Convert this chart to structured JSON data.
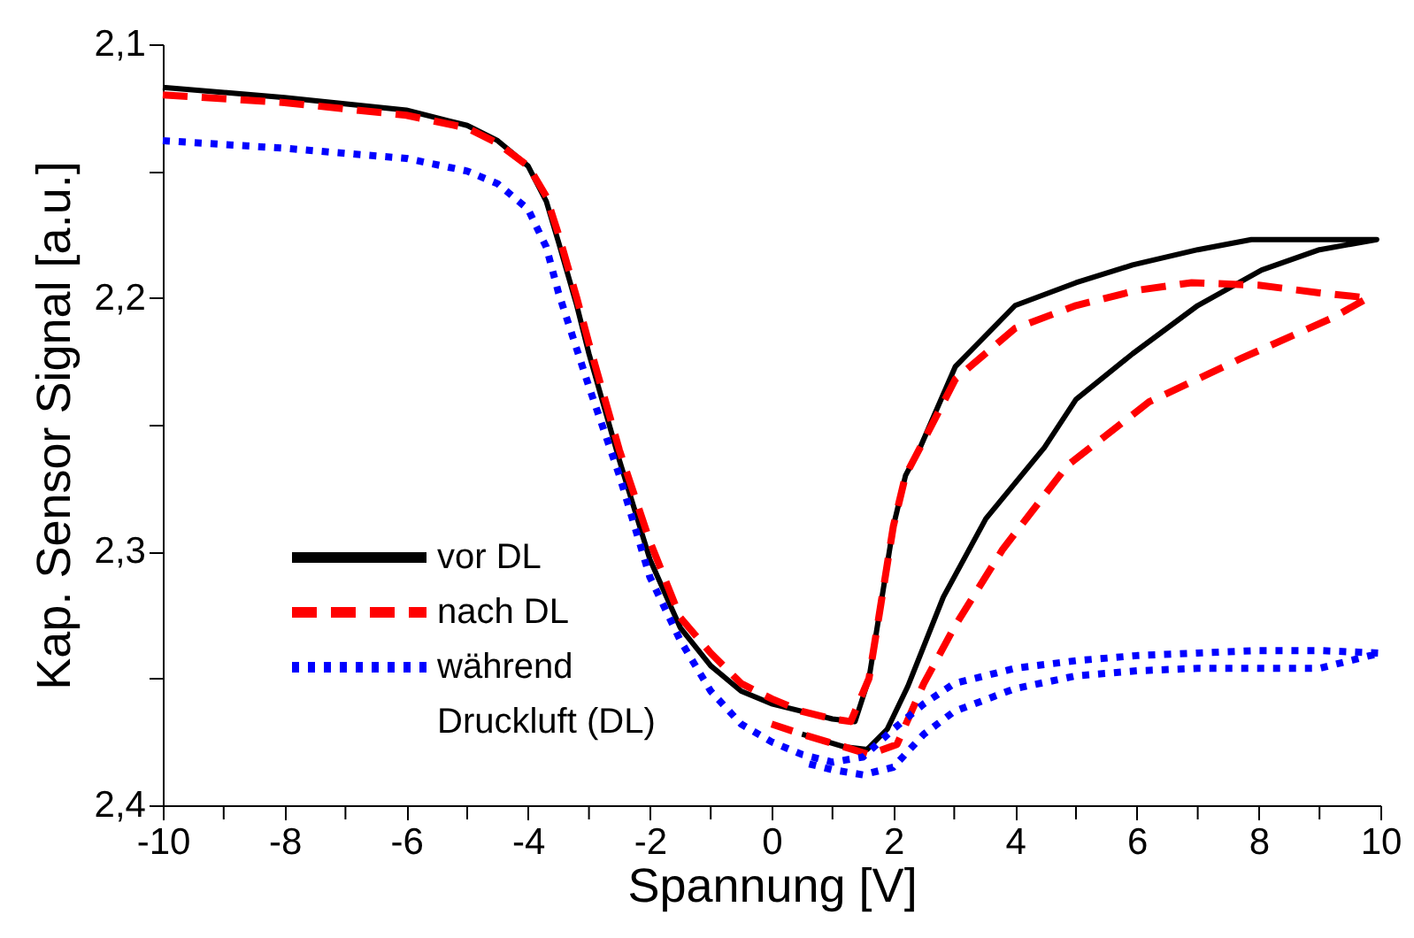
{
  "chart_data": {
    "type": "line",
    "xlabel": "Spannung [V]",
    "ylabel": "Kap. Sensor Signal [a.u.]",
    "xlim": [
      -10,
      10
    ],
    "xticks": [
      -10,
      {
        "value": -9,
        "label": null
      },
      -8,
      {
        "value": -7,
        "label": null
      },
      -6,
      {
        "value": -5,
        "label": null
      },
      -4,
      {
        "value": -3,
        "label": null
      },
      -2,
      {
        "value": -1,
        "label": null
      },
      0,
      {
        "value": 1,
        "label": null
      },
      2,
      {
        "value": 3,
        "label": null
      },
      4,
      {
        "value": 5,
        "label": null
      },
      6,
      {
        "value": 7,
        "label": null
      },
      8,
      {
        "value": 9,
        "label": null
      },
      10
    ],
    "ylim": [
      2.4,
      2.1
    ],
    "yticks": [
      {
        "value": 2.1,
        "label": "2,1"
      },
      {
        "value": 2.15,
        "label": null
      },
      {
        "value": 2.2,
        "label": "2,2"
      },
      {
        "value": 2.25,
        "label": null
      },
      {
        "value": 2.3,
        "label": "2,3"
      },
      {
        "value": 2.35,
        "label": null
      },
      {
        "value": 2.4,
        "label": "2,4"
      }
    ],
    "grid": false,
    "legend": "bottom left",
    "marker": "none",
    "series": [
      {
        "name": "vor DL",
        "color": "#000000",
        "line_style": "solid",
        "x": [
          -10,
          -8,
          -6,
          -5,
          -4.5,
          -4,
          -3.7,
          -3.5,
          -3.2,
          -3,
          -2.5,
          -2,
          -1.5,
          -1,
          -0.5,
          0,
          0.5,
          1,
          1.37,
          1.6,
          1.8,
          2,
          2.2,
          2.44,
          3.02,
          4,
          5,
          5.93,
          7,
          7.88,
          9,
          9.94,
          9,
          8.05,
          7,
          5.93,
          5,
          4.48,
          3.52,
          2.82,
          2.24,
          1.9,
          1.57,
          1.2,
          0.5
        ],
        "values": [
          2.117,
          2.121,
          2.126,
          2.132,
          2.138,
          2.148,
          2.162,
          2.178,
          2.203,
          2.222,
          2.264,
          2.303,
          2.33,
          2.345,
          2.355,
          2.36,
          2.363,
          2.366,
          2.367,
          2.35,
          2.32,
          2.29,
          2.27,
          2.259,
          2.227,
          2.203,
          2.194,
          2.187,
          2.181,
          2.177,
          2.177,
          2.177,
          2.181,
          2.189,
          2.203,
          2.222,
          2.24,
          2.259,
          2.287,
          2.318,
          2.353,
          2.37,
          2.378,
          2.377,
          2.372
        ]
      },
      {
        "name": "nach DL",
        "color": "#ff0000",
        "line_style": "dashed",
        "x": [
          -10,
          -8,
          -6,
          -5,
          -4.5,
          -4,
          -3.7,
          -3.5,
          -3.2,
          -3,
          -2.5,
          -2,
          -1.5,
          -1,
          -0.5,
          0,
          0.5,
          1,
          1.3,
          1.6,
          1.8,
          2,
          2.2,
          2.44,
          3.02,
          4,
          5,
          6,
          6.9,
          8,
          9,
          9.8,
          9.2,
          7.7,
          6.2,
          4.86,
          3.8,
          3.02,
          2.5,
          2.06,
          1.6,
          1.2,
          0.5,
          0
        ],
        "values": [
          2.12,
          2.123,
          2.128,
          2.133,
          2.139,
          2.148,
          2.16,
          2.175,
          2.2,
          2.218,
          2.26,
          2.296,
          2.326,
          2.34,
          2.352,
          2.358,
          2.363,
          2.366,
          2.367,
          2.35,
          2.32,
          2.29,
          2.27,
          2.259,
          2.232,
          2.212,
          2.203,
          2.197,
          2.194,
          2.195,
          2.198,
          2.2,
          2.208,
          2.224,
          2.241,
          2.266,
          2.299,
          2.329,
          2.352,
          2.376,
          2.38,
          2.377,
          2.372,
          2.368
        ]
      },
      {
        "name": "während\nDruckluft (DL)",
        "color": "#0000ff",
        "line_style": "dotted",
        "x": [
          -10,
          -8,
          -6,
          -5,
          -4.5,
          -4,
          -3.7,
          -3.5,
          -3,
          -2.5,
          -2,
          -1.5,
          -1,
          -0.5,
          0,
          0.5,
          1,
          1.5,
          2,
          2.5,
          3,
          4,
          5,
          6,
          7,
          8,
          9,
          10,
          9,
          8,
          7,
          6,
          5,
          4,
          3,
          2.5,
          2,
          1.5,
          1,
          0.5
        ],
        "values": [
          2.138,
          2.141,
          2.145,
          2.15,
          2.155,
          2.165,
          2.18,
          2.198,
          2.235,
          2.27,
          2.31,
          2.335,
          2.355,
          2.368,
          2.375,
          2.38,
          2.383,
          2.381,
          2.37,
          2.36,
          2.352,
          2.346,
          2.343,
          2.341,
          2.34,
          2.339,
          2.339,
          2.34,
          2.346,
          2.346,
          2.346,
          2.347,
          2.349,
          2.354,
          2.363,
          2.372,
          2.385,
          2.388,
          2.386,
          2.383
        ]
      }
    ]
  }
}
